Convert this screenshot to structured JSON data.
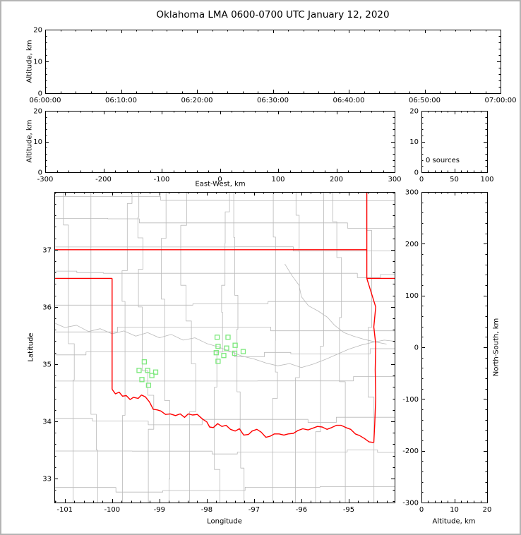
{
  "title": "Oklahoma LMA 0600-0700 UTC January 12, 2020",
  "chart_data": {
    "type": "scatter",
    "title": "Oklahoma LMA 0600-0700 UTC January 12, 2020",
    "colors": {
      "state_border": "#ff0000",
      "county": "#b9b9b9",
      "station": "#7ce87c",
      "axis": "#000000",
      "background": "#ffffff"
    },
    "panels": {
      "time_height": {
        "ylabel": "Altitude, km",
        "xlim": [
          0,
          3600
        ],
        "xticks": [
          0,
          600,
          1200,
          1800,
          2400,
          3000,
          3600
        ],
        "xtick_labels": [
          "06:00:00",
          "06:10:00",
          "06:20:00",
          "06:30:00",
          "06:40:00",
          "06:50:00",
          "07:00:00"
        ],
        "xminor": 120,
        "ylim": [
          0,
          20
        ],
        "yticks": [
          0,
          10,
          20
        ],
        "ytick_labels": [
          "0",
          "10",
          "20"
        ],
        "yminor": 2,
        "points": []
      },
      "ew_height": {
        "xlabel": "East-West, km",
        "ylabel": "Altitude, km",
        "xlim": [
          -300,
          300
        ],
        "xticks": [
          -300,
          -200,
          -100,
          0,
          100,
          200,
          300
        ],
        "xtick_labels": [
          "-300",
          "-200",
          "-100",
          "0",
          "100",
          "200",
          "300"
        ],
        "xminor": 20,
        "ylim": [
          0,
          20
        ],
        "yticks": [
          0,
          10,
          20
        ],
        "ytick_labels": [
          "0",
          "10",
          "20"
        ],
        "yminor": 2,
        "points": []
      },
      "alt_histogram": {
        "annotation": "0 sources",
        "xlim": [
          0,
          100
        ],
        "xticks": [
          0,
          50,
          100
        ],
        "xtick_labels": [
          "0",
          "50",
          "100"
        ],
        "xminor": 10,
        "ylim": [
          0,
          20
        ],
        "yticks": [
          0,
          10,
          20
        ],
        "ytick_labels": [
          "0",
          "10",
          "20"
        ],
        "yminor": 2
      },
      "plan_view": {
        "xlabel": "Longitude",
        "ylabel": "Latitude",
        "xlim": [
          -101.22,
          -94.03
        ],
        "xticks": [
          -101,
          -100,
          -99,
          -98,
          -97,
          -96,
          -95
        ],
        "xtick_labels": [
          "-101",
          "-100",
          "-99",
          "-98",
          "-97",
          "-96",
          "-95"
        ],
        "xminor": 0.2,
        "ylim": [
          32.58,
          38.01
        ],
        "yticks": [
          33,
          34,
          35,
          36,
          37
        ],
        "ytick_labels": [
          "33",
          "34",
          "35",
          "36",
          "37"
        ],
        "yminor": 0.2,
        "points": [],
        "stations": [
          [
            -97.78,
            35.47
          ],
          [
            -97.55,
            35.47
          ],
          [
            -97.76,
            35.31
          ],
          [
            -97.58,
            35.28
          ],
          [
            -97.4,
            35.33
          ],
          [
            -97.8,
            35.2
          ],
          [
            -97.64,
            35.15
          ],
          [
            -97.41,
            35.19
          ],
          [
            -97.23,
            35.22
          ],
          [
            -97.76,
            35.05
          ],
          [
            -99.32,
            35.04
          ],
          [
            -99.43,
            34.89
          ],
          [
            -99.25,
            34.89
          ],
          [
            -99.16,
            34.8
          ],
          [
            -99.37,
            34.73
          ],
          [
            -99.23,
            34.63
          ],
          [
            -99.08,
            34.86
          ]
        ]
      },
      "ns_height": {
        "xlabel": "Altitude, km",
        "ylabel": "North-South, km",
        "xlim": [
          0,
          20
        ],
        "xticks": [
          0,
          10,
          20
        ],
        "xtick_labels": [
          "0",
          "10",
          "20"
        ],
        "xminor": 2,
        "ylim": [
          -300,
          300
        ],
        "yticks": [
          -300,
          -200,
          -100,
          0,
          100,
          200,
          300
        ],
        "ytick_labels": [
          "-300",
          "-200",
          "-100",
          "0",
          "100",
          "200",
          "300"
        ],
        "yminor": 20,
        "points": []
      }
    },
    "map_geography": {
      "state_border": [
        {
          "name": "oklahoma-north-37",
          "points": [
            [
              -101.22,
              37.0
            ],
            [
              -94.617,
              37.0
            ]
          ]
        },
        {
          "name": "panhandle-south-36p5",
          "points": [
            [
              -101.22,
              36.5
            ],
            [
              -100.0,
              36.5
            ]
          ]
        },
        {
          "name": "oklahoma-west-100",
          "points": [
            [
              -100.0,
              36.5
            ],
            [
              -100.0,
              34.56
            ]
          ]
        },
        {
          "name": "red-river-south",
          "points": [
            [
              -100.0,
              34.56
            ],
            [
              -99.93,
              34.48
            ],
            [
              -99.85,
              34.51
            ],
            [
              -99.78,
              34.44
            ],
            [
              -99.7,
              34.45
            ],
            [
              -99.62,
              34.38
            ],
            [
              -99.55,
              34.42
            ],
            [
              -99.45,
              34.4
            ],
            [
              -99.38,
              34.46
            ],
            [
              -99.3,
              34.43
            ],
            [
              -99.21,
              34.34
            ],
            [
              -99.13,
              34.21
            ],
            [
              -99.05,
              34.2
            ],
            [
              -98.97,
              34.18
            ],
            [
              -98.87,
              34.12
            ],
            [
              -98.77,
              34.13
            ],
            [
              -98.66,
              34.1
            ],
            [
              -98.56,
              34.13
            ],
            [
              -98.47,
              34.07
            ],
            [
              -98.39,
              34.13
            ],
            [
              -98.3,
              34.11
            ],
            [
              -98.2,
              34.12
            ],
            [
              -98.09,
              34.04
            ],
            [
              -98.0,
              33.99
            ],
            [
              -97.94,
              33.9
            ],
            [
              -97.86,
              33.89
            ],
            [
              -97.77,
              33.96
            ],
            [
              -97.68,
              33.91
            ],
            [
              -97.59,
              33.93
            ],
            [
              -97.5,
              33.86
            ],
            [
              -97.4,
              33.83
            ],
            [
              -97.31,
              33.87
            ],
            [
              -97.22,
              33.76
            ],
            [
              -97.12,
              33.77
            ],
            [
              -97.04,
              33.83
            ],
            [
              -96.94,
              33.86
            ],
            [
              -96.85,
              33.81
            ],
            [
              -96.75,
              33.72
            ],
            [
              -96.66,
              33.74
            ],
            [
              -96.57,
              33.78
            ],
            [
              -96.47,
              33.78
            ],
            [
              -96.37,
              33.76
            ],
            [
              -96.28,
              33.78
            ],
            [
              -96.17,
              33.79
            ],
            [
              -96.07,
              33.84
            ],
            [
              -95.97,
              33.87
            ],
            [
              -95.86,
              33.85
            ],
            [
              -95.76,
              33.88
            ],
            [
              -95.66,
              33.91
            ],
            [
              -95.56,
              33.9
            ],
            [
              -95.46,
              33.86
            ],
            [
              -95.36,
              33.89
            ],
            [
              -95.26,
              33.93
            ],
            [
              -95.16,
              33.93
            ],
            [
              -95.06,
              33.89
            ],
            [
              -94.96,
              33.86
            ],
            [
              -94.86,
              33.78
            ],
            [
              -94.77,
              33.75
            ],
            [
              -94.67,
              33.7
            ],
            [
              -94.57,
              33.64
            ],
            [
              -94.47,
              33.63
            ]
          ]
        },
        {
          "name": "oklahoma-east",
          "points": [
            [
              -94.47,
              33.63
            ],
            [
              -94.45,
              33.95
            ],
            [
              -94.43,
              34.4
            ],
            [
              -94.44,
              34.9
            ],
            [
              -94.43,
              35.35
            ],
            [
              -94.47,
              35.65
            ],
            [
              -94.43,
              36.0
            ],
            [
              -94.617,
              36.5
            ],
            [
              -94.617,
              37.0
            ]
          ]
        },
        {
          "name": "kansas-missouri",
          "points": [
            [
              -94.617,
              37.0
            ],
            [
              -94.617,
              38.01
            ]
          ]
        },
        {
          "name": "missouri-arkansas",
          "points": [
            [
              -94.617,
              36.5
            ],
            [
              -94.03,
              36.5
            ]
          ]
        }
      ],
      "rivers": [
        {
          "name": "canadian",
          "points": [
            [
              -101.22,
              35.72
            ],
            [
              -101.0,
              35.64
            ],
            [
              -100.75,
              35.68
            ],
            [
              -100.5,
              35.57
            ],
            [
              -100.25,
              35.62
            ],
            [
              -100.0,
              35.53
            ],
            [
              -99.75,
              35.58
            ],
            [
              -99.5,
              35.49
            ],
            [
              -99.25,
              35.55
            ],
            [
              -99.0,
              35.46
            ],
            [
              -98.75,
              35.52
            ],
            [
              -98.5,
              35.42
            ],
            [
              -98.25,
              35.46
            ],
            [
              -98.0,
              35.36
            ],
            [
              -97.75,
              35.3
            ],
            [
              -97.5,
              35.22
            ],
            [
              -97.25,
              35.14
            ],
            [
              -97.0,
              35.09
            ],
            [
              -96.75,
              35.02
            ],
            [
              -96.5,
              34.97
            ],
            [
              -96.25,
              35.01
            ],
            [
              -96.0,
              34.94
            ],
            [
              -95.75,
              35.0
            ],
            [
              -95.5,
              35.08
            ],
            [
              -95.25,
              35.17
            ],
            [
              -95.0,
              35.26
            ],
            [
              -94.75,
              35.33
            ],
            [
              -94.5,
              35.38
            ],
            [
              -94.25,
              35.42
            ],
            [
              -94.03,
              35.4
            ]
          ]
        },
        {
          "name": "arkansas",
          "points": [
            [
              -96.35,
              36.75
            ],
            [
              -96.2,
              36.55
            ],
            [
              -96.05,
              36.38
            ],
            [
              -96.0,
              36.18
            ],
            [
              -95.85,
              36.02
            ],
            [
              -95.65,
              35.93
            ],
            [
              -95.45,
              35.82
            ],
            [
              -95.3,
              35.68
            ],
            [
              -95.1,
              35.55
            ],
            [
              -94.9,
              35.49
            ],
            [
              -94.7,
              35.44
            ],
            [
              -94.45,
              35.39
            ],
            [
              -94.2,
              35.35
            ]
          ]
        }
      ]
    }
  }
}
